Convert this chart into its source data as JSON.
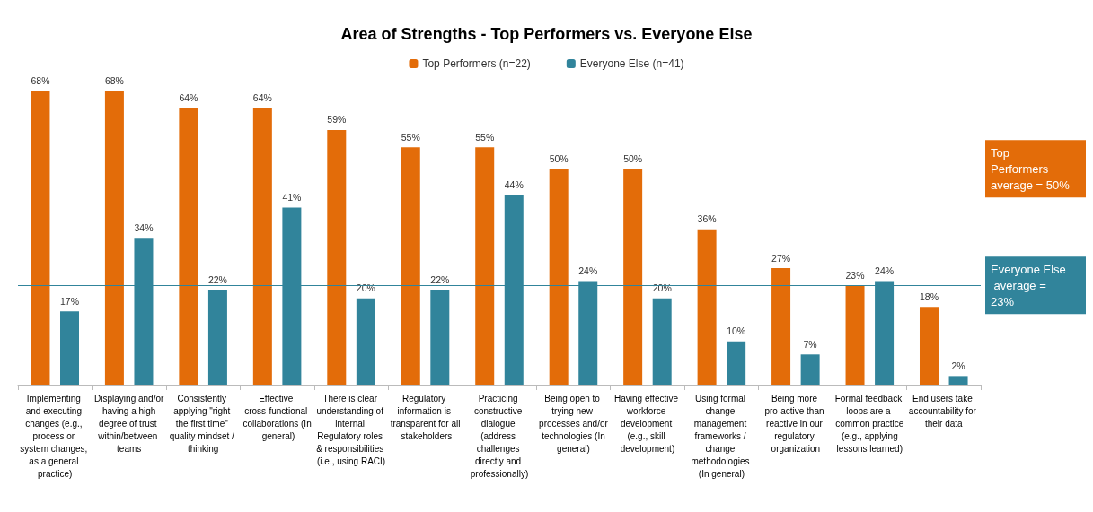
{
  "chart_data": {
    "type": "bar",
    "title": "Area of Strengths - Top Performers vs. Everyone Else",
    "categories": [
      "Implementing and executing changes (e.g., process or system changes, as a general practice)",
      "Displaying and/or having a high degree of trust within/between teams",
      "Consistently applying \"right the first time\" quality mindset / thinking",
      "Effective cross-functional collaborations (In general)",
      "There is clear understanding of internal Regulatory roles & responsibilities (i.e., using RACI)",
      "Regulatory information is transparent for all stakeholders",
      "Practicing constructive dialogue (address challenges directly and professionally)",
      "Being open to trying new processes and/or technologies (In general)",
      "Having effective workforce development (e.g., skill development)",
      "Using formal change management frameworks / change methodologies (In general)",
      "Being more pro-active than reactive in our regulatory organization",
      "Formal feedback loops are a common practice (e.g., applying lessons learned)",
      "End users take accountability for their data"
    ],
    "series": [
      {
        "name": "Top Performers (n=22)",
        "color": "#e36c09",
        "values": [
          68,
          68,
          64,
          64,
          59,
          55,
          55,
          50,
          50,
          36,
          27,
          23,
          18
        ],
        "value_labels": [
          "68%",
          "68%",
          "64%",
          "64%",
          "59%",
          "55%",
          "55%",
          "50%",
          "50%",
          "36%",
          "27%",
          "23%",
          "18%"
        ]
      },
      {
        "name": "Everyone Else (n=41)",
        "color": "#31849b",
        "values": [
          17,
          34,
          22,
          41,
          20,
          22,
          44,
          24,
          20,
          10,
          7,
          24,
          2
        ],
        "value_labels": [
          "17%",
          "34%",
          "22%",
          "41%",
          "20%",
          "22%",
          "44%",
          "24%",
          "20%",
          "10%",
          "7%",
          "24%",
          "2%"
        ]
      }
    ],
    "ref_lines": [
      {
        "axis": "y",
        "value": 50,
        "label": "Top Performers average = 50%",
        "color": "#e36c09"
      },
      {
        "axis": "y",
        "value": 23,
        "label": "Everyone Else average = 23%",
        "color": "#31849b"
      }
    ],
    "legend": "top"
  }
}
